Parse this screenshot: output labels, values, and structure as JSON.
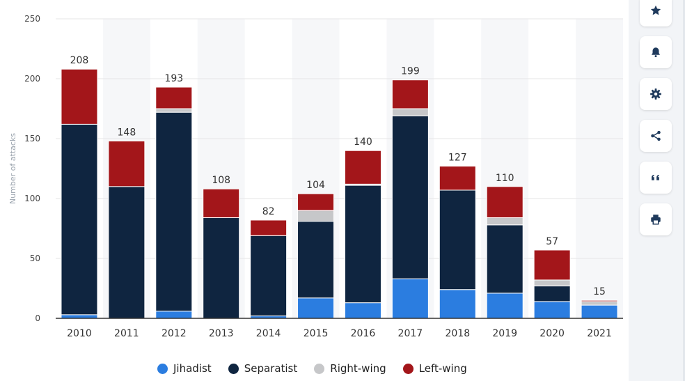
{
  "chart_data": {
    "type": "bar",
    "stacked": true,
    "ylabel": "Number of attacks",
    "ylim": [
      0,
      250
    ],
    "yticks": [
      0,
      50,
      100,
      150,
      200,
      250
    ],
    "categories": [
      "2010",
      "2011",
      "2012",
      "2013",
      "2014",
      "2015",
      "2016",
      "2017",
      "2018",
      "2019",
      "2020",
      "2021"
    ],
    "series": [
      {
        "name": "Jihadist",
        "color": "#2b7de0",
        "values": [
          3,
          0,
          6,
          0,
          2,
          17,
          13,
          33,
          24,
          21,
          14,
          11
        ]
      },
      {
        "name": "Separatist",
        "color": "#0f2540",
        "values": [
          159,
          110,
          166,
          84,
          67,
          64,
          98,
          136,
          83,
          57,
          13,
          0
        ]
      },
      {
        "name": "Right-wing",
        "color": "#c6c7c9",
        "values": [
          0,
          0,
          3,
          0,
          0,
          9,
          1,
          6,
          0,
          6,
          5,
          3
        ]
      },
      {
        "name": "Left-wing",
        "color": "#a3161a",
        "values": [
          46,
          38,
          18,
          24,
          13,
          14,
          28,
          24,
          20,
          26,
          25,
          1
        ]
      }
    ],
    "totals": [
      208,
      148,
      193,
      108,
      82,
      104,
      140,
      199,
      127,
      110,
      57,
      15
    ],
    "grid": true,
    "legend": "bottom"
  },
  "toolbar": [
    {
      "name": "favorite-button",
      "icon": "star-icon"
    },
    {
      "name": "notification-button",
      "icon": "bell-icon"
    },
    {
      "name": "settings-button",
      "icon": "gear-icon"
    },
    {
      "name": "share-button",
      "icon": "share-icon"
    },
    {
      "name": "cite-button",
      "icon": "quote-icon"
    },
    {
      "name": "print-button",
      "icon": "printer-icon"
    }
  ],
  "colors": {
    "icon": "#1f3a5c",
    "grid": "#e6e6e6",
    "axis": "#333333",
    "tick_text": "#444444",
    "label_text": "#333333"
  }
}
